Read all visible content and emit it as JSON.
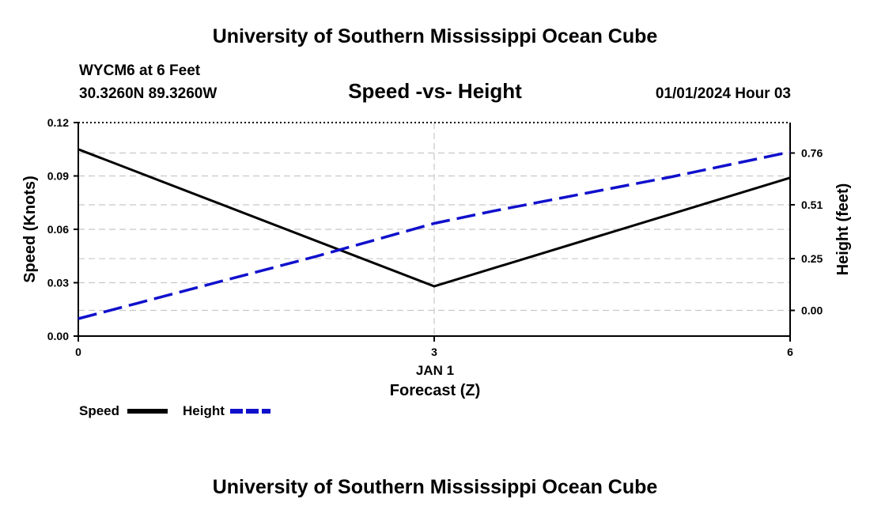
{
  "header": {
    "title_top": "University of Southern Mississippi Ocean Cube",
    "station": "WYCM6 at 6 Feet",
    "location": "30.3260N  89.3260W",
    "datetime": "01/01/2024 Hour 03",
    "title_bottom": "University of Southern Mississippi Ocean Cube"
  },
  "chart_data": {
    "type": "line",
    "title": "Speed -vs- Height",
    "xlabel": "Forecast (Z)",
    "x_date_label": "JAN 1",
    "x": [
      0,
      3,
      6
    ],
    "x_ticks": [
      "0",
      "3",
      "6"
    ],
    "xlim": [
      0,
      6
    ],
    "y_left": {
      "label": "Speed (Knots)",
      "ylim": [
        0,
        0.12
      ],
      "ticks": [
        0.0,
        0.03,
        0.06,
        0.09,
        0.12
      ],
      "tick_labels": [
        "0.00",
        "0.03",
        "0.06",
        "0.09",
        "0.12"
      ]
    },
    "y_right": {
      "label": "Height (feet)",
      "ylim": [
        -0.124,
        0.907
      ],
      "ticks": [
        0.0,
        0.25,
        0.51,
        0.76
      ],
      "tick_labels": [
        "0.00",
        "0.25",
        "0.51",
        "0.76"
      ]
    },
    "grid": true,
    "series": [
      {
        "name": "Speed",
        "axis": "left",
        "style": "solid",
        "color": "#000000",
        "x": [
          0,
          3,
          6
        ],
        "values": [
          0.105,
          0.028,
          0.089
        ]
      },
      {
        "name": "Height",
        "axis": "right",
        "style": "dashed",
        "color": "#1010cc",
        "x": [
          0,
          0.5,
          1,
          1.5,
          2,
          2.5,
          3,
          3.5,
          4,
          4.5,
          5,
          5.5,
          6
        ],
        "values": [
          -0.04,
          0.035,
          0.11,
          0.185,
          0.26,
          0.34,
          0.42,
          0.48,
          0.535,
          0.59,
          0.645,
          0.705,
          0.765
        ]
      }
    ],
    "legend": [
      {
        "label": "Speed",
        "style": "solid",
        "color": "#000000"
      },
      {
        "label": "Height",
        "style": "dashed",
        "color": "#1010cc"
      }
    ]
  }
}
